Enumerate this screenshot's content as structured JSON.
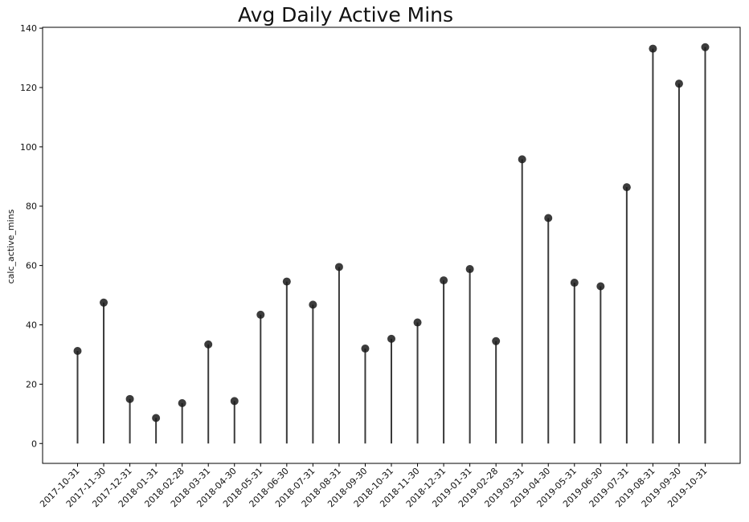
{
  "chart_data": {
    "type": "scatter",
    "style": "lollipop",
    "title": "Avg Daily Active Mins",
    "xlabel": "",
    "ylabel": "calc_active_mins",
    "categories": [
      "2017-10-31",
      "2017-11-30",
      "2017-12-31",
      "2018-01-31",
      "2018-02-28",
      "2018-03-31",
      "2018-04-30",
      "2018-05-31",
      "2018-06-30",
      "2018-07-31",
      "2018-08-31",
      "2018-09-30",
      "2018-10-31",
      "2018-11-30",
      "2018-12-31",
      "2019-01-31",
      "2019-02-28",
      "2019-03-31",
      "2019-04-30",
      "2019-05-31",
      "2019-06-30",
      "2019-07-31",
      "2019-08-31",
      "2019-09-30",
      "2019-10-31"
    ],
    "values": [
      31.2,
      47.5,
      15.0,
      8.6,
      13.6,
      33.4,
      14.3,
      43.4,
      54.6,
      46.8,
      59.5,
      32.0,
      35.3,
      40.8,
      55.0,
      58.8,
      34.5,
      95.8,
      76.0,
      54.2,
      53.0,
      86.4,
      133.1,
      121.3,
      133.6
    ],
    "yticks": [
      0,
      20,
      40,
      60,
      80,
      100,
      120,
      140
    ],
    "ylim": [
      -6.7,
      140.3
    ],
    "grid": false,
    "legend": "none",
    "colors": {
      "marker": "#1a1a1a",
      "stem": "#3a3a3a",
      "axis": "#000000",
      "background": "#ffffff"
    }
  }
}
